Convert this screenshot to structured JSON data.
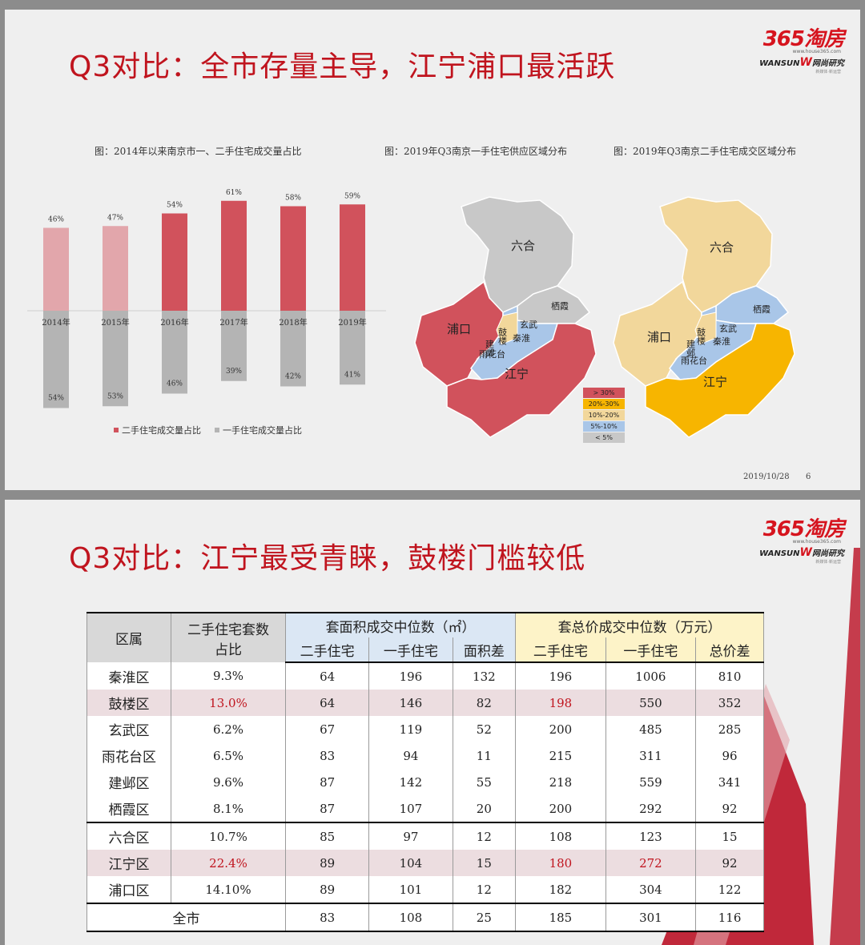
{
  "slide1": {
    "title": "Q3对比：全市存量主导，江宁浦口最活跃",
    "logo": {
      "brand": "365淘房",
      "url": "www.house365.com",
      "sub_left": "WANSUN",
      "sub_right": "网尚研究",
      "slogan": "新媒体·新运营"
    },
    "captions": {
      "bar": "图：2014年以来南京市一、二手住宅成交量占比",
      "map1": "图：2019年Q3南京一手住宅供应区域分布",
      "map2": "图：2019年Q3南京二手住宅成交区域分布"
    },
    "footer": {
      "date": "2019/10/28",
      "page": "6"
    },
    "legend_map": [
      "> 30%",
      "20%-30%",
      "10%-20%",
      "5%-10%",
      "< 5%"
    ],
    "colors": {
      "top_dark": "#d1525c",
      "top_light": "#e2a6ab",
      "bottom": "#b4b4b4",
      "red": "#d1525c",
      "yellow": "#f2d79b",
      "orange": "#f7b500",
      "blue": "#a9c6e8",
      "gray": "#c8c8c8"
    },
    "map_labels": {
      "liuhe": "六合",
      "pukou": "浦口",
      "jiangning": "江宁",
      "gulou": "鼓楼",
      "xuanwu": "玄武",
      "jianye": "建邺",
      "qinhuai": "秦淮",
      "qixia": "栖霞",
      "yuhuatai": "雨花台"
    }
  },
  "chart_data": {
    "type": "bar",
    "categories": [
      "2014年",
      "2015年",
      "2016年",
      "2017年",
      "2018年",
      "2019年"
    ],
    "series": [
      {
        "name": "二手住宅成交量占比",
        "values": [
          46,
          47,
          54,
          61,
          58,
          59
        ],
        "labels": [
          "46%",
          "47%",
          "54%",
          "61%",
          "58%",
          "59%"
        ]
      },
      {
        "name": "一手住宅成交量占比",
        "values": [
          54,
          53,
          46,
          39,
          42,
          41
        ],
        "labels": [
          "54%",
          "53%",
          "46%",
          "39%",
          "42%",
          "41%"
        ]
      }
    ],
    "title": "",
    "legend": "bottom"
  },
  "slide2": {
    "title": "Q3对比：江宁最受青睐，鼓楼门槛较低",
    "logo": {
      "brand": "365淘房",
      "url": "www.house365.com",
      "sub_left": "WANSUN",
      "sub_right": "网尚研究",
      "slogan": "新媒体·新运营"
    },
    "table": {
      "header": {
        "district": "区属",
        "share": "二手住宅套数占比",
        "area_group": "套面积成交中位数（㎡）",
        "price_group": "套总价成交中位数（万元）",
        "area_cols": [
          "二手住宅",
          "一手住宅",
          "面积差"
        ],
        "price_cols": [
          "二手住宅",
          "一手住宅",
          "总价差"
        ]
      },
      "rows": [
        {
          "name": "秦淮区",
          "share": "9.3%",
          "a2": "64",
          "a1": "196",
          "ad": "132",
          "p2": "196",
          "p1": "1006",
          "pd": "810"
        },
        {
          "name": "鼓楼区",
          "share": "13.0%",
          "a2": "64",
          "a1": "146",
          "ad": "82",
          "p2": "198",
          "p1": "550",
          "pd": "352"
        },
        {
          "name": "玄武区",
          "share": "6.2%",
          "a2": "67",
          "a1": "119",
          "ad": "52",
          "p2": "200",
          "p1": "485",
          "pd": "285"
        },
        {
          "name": "雨花台区",
          "share": "6.5%",
          "a2": "83",
          "a1": "94",
          "ad": "11",
          "p2": "215",
          "p1": "311",
          "pd": "96"
        },
        {
          "name": "建邺区",
          "share": "9.6%",
          "a2": "87",
          "a1": "142",
          "ad": "55",
          "p2": "218",
          "p1": "559",
          "pd": "341"
        },
        {
          "name": "栖霞区",
          "share": "8.1%",
          "a2": "87",
          "a1": "107",
          "ad": "20",
          "p2": "200",
          "p1": "292",
          "pd": "92"
        },
        {
          "name": "六合区",
          "share": "10.7%",
          "a2": "85",
          "a1": "97",
          "ad": "12",
          "p2": "108",
          "p1": "123",
          "pd": "15"
        },
        {
          "name": "江宁区",
          "share": "22.4%",
          "a2": "89",
          "a1": "104",
          "ad": "15",
          "p2": "180",
          "p1": "272",
          "pd": "92"
        },
        {
          "name": "浦口区",
          "share": "14.10%",
          "a2": "89",
          "a1": "101",
          "ad": "12",
          "p2": "182",
          "p1": "304",
          "pd": "122"
        }
      ],
      "total": {
        "name": "全市",
        "a2": "83",
        "a1": "108",
        "ad": "25",
        "p2": "185",
        "p1": "301",
        "pd": "116"
      }
    }
  }
}
